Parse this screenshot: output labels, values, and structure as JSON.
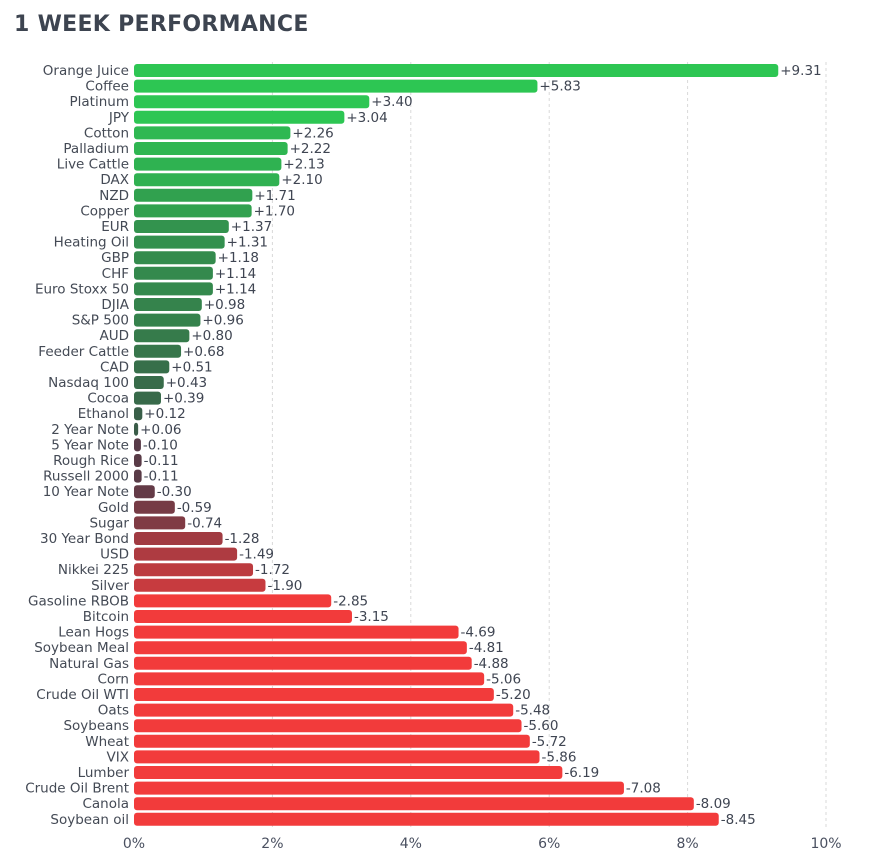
{
  "header": {
    "title": "1 WEEK PERFORMANCE"
  },
  "chart_data": {
    "type": "bar",
    "orientation": "horizontal",
    "title": "1 WEEK PERFORMANCE",
    "xlabel": "",
    "ylabel": "",
    "xlim": [
      0,
      10
    ],
    "x_ticks": [
      "0%",
      "2%",
      "4%",
      "6%",
      "8%",
      "10%"
    ],
    "grid": "vertical dashed",
    "legend": "none",
    "value_meaning": "magnitude in percent; negative values drawn as positive-length bars",
    "categories": [
      "Orange Juice",
      "Coffee",
      "Platinum",
      "JPY",
      "Cotton",
      "Palladium",
      "Live Cattle",
      "DAX",
      "NZD",
      "Copper",
      "EUR",
      "Heating Oil",
      "GBP",
      "CHF",
      "Euro Stoxx 50",
      "DJIA",
      "S&P 500",
      "AUD",
      "Feeder Cattle",
      "CAD",
      "Nasdaq 100",
      "Cocoa",
      "Ethanol",
      "2 Year Note",
      "5 Year Note",
      "Rough Rice",
      "Russell 2000",
      "10 Year Note",
      "Gold",
      "Sugar",
      "30 Year Bond",
      "USD",
      "Nikkei 225",
      "Silver",
      "Gasoline RBOB",
      "Bitcoin",
      "Lean Hogs",
      "Soybean Meal",
      "Natural Gas",
      "Corn",
      "Crude Oil WTI",
      "Oats",
      "Soybeans",
      "Wheat",
      "VIX",
      "Lumber",
      "Crude Oil Brent",
      "Canola",
      "Soybean oil"
    ],
    "values": [
      9.31,
      5.83,
      3.4,
      3.04,
      2.26,
      2.22,
      2.13,
      2.1,
      1.71,
      1.7,
      1.37,
      1.31,
      1.18,
      1.14,
      1.14,
      0.98,
      0.96,
      0.8,
      0.68,
      0.51,
      0.43,
      0.39,
      0.12,
      0.06,
      -0.1,
      -0.11,
      -0.11,
      -0.3,
      -0.59,
      -0.74,
      -1.28,
      -1.49,
      -1.72,
      -1.9,
      -2.85,
      -3.15,
      -4.69,
      -4.81,
      -4.88,
      -5.06,
      -5.2,
      -5.48,
      -5.6,
      -5.72,
      -5.86,
      -6.19,
      -7.08,
      -8.09,
      -8.45
    ],
    "value_labels": [
      "+9.31",
      "+5.83",
      "+3.40",
      "+3.04",
      "+2.26",
      "+2.22",
      "+2.13",
      "+2.10",
      "+1.71",
      "+1.70",
      "+1.37",
      "+1.31",
      "+1.18",
      "+1.14",
      "+1.14",
      "+0.98",
      "+0.96",
      "+0.80",
      "+0.68",
      "+0.51",
      "+0.43",
      "+0.39",
      "+0.12",
      "+0.06",
      "-0.10",
      "-0.11",
      "-0.11",
      "-0.30",
      "-0.59",
      "-0.74",
      "-1.28",
      "-1.49",
      "-1.72",
      "-1.90",
      "-2.85",
      "-3.15",
      "-4.69",
      "-4.81",
      "-4.88",
      "-5.06",
      "-5.20",
      "-5.48",
      "-5.60",
      "-5.72",
      "-5.86",
      "-6.19",
      "-7.08",
      "-8.09",
      "-8.45"
    ],
    "colors": {
      "positive": "#2dc653",
      "positive_dim": "#3a5a48",
      "negative": "#f23b3b",
      "negative_dim": "#523b48",
      "grid": "#d9d9d9"
    }
  }
}
